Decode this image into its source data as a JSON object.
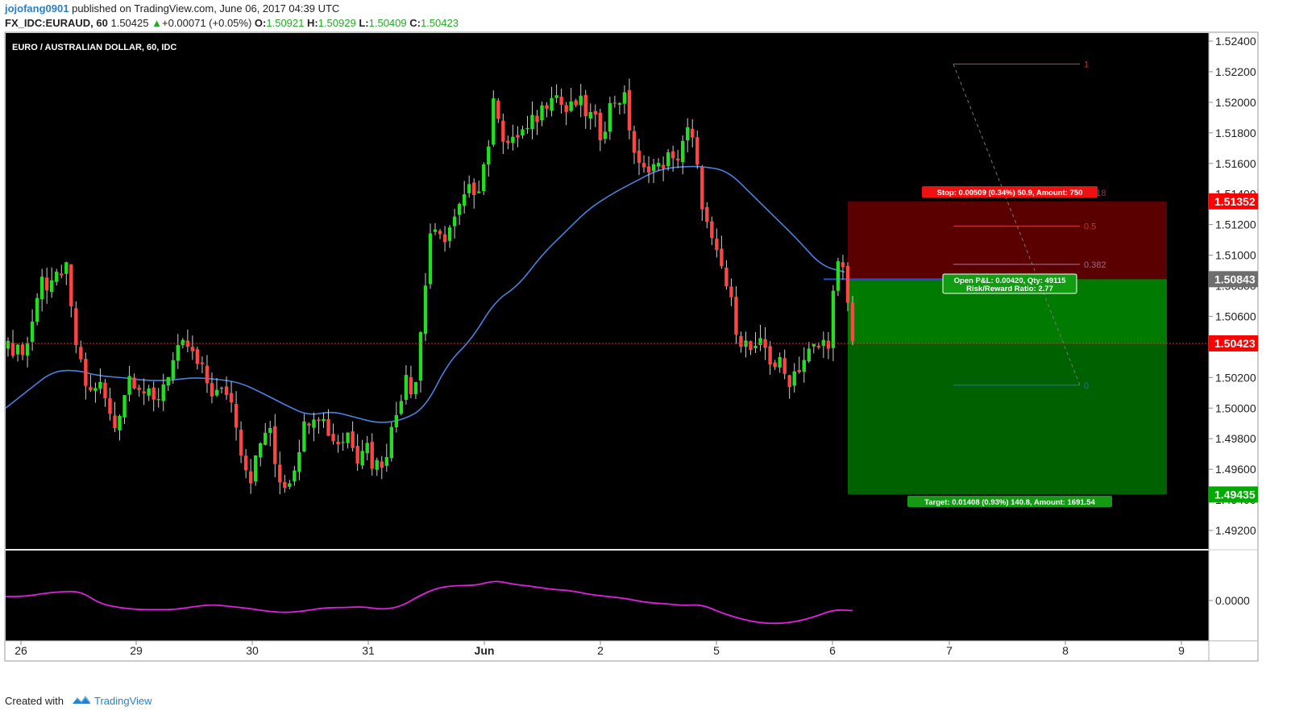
{
  "header": {
    "user": "jojofang0901",
    "published": "published on TradingView.com, June 06, 2017 04:39 UTC",
    "symbol": "FX_IDC:EURAUD, 60",
    "price": "1.50425",
    "change_arrow": "▲",
    "change": "+0.00071 (+0.05%)",
    "o_label": "O:",
    "o": "1.50921",
    "h_label": "H:",
    "h": "1.50929",
    "l_label": "L:",
    "l": "1.50409",
    "c_label": "C:",
    "c": "1.50423"
  },
  "footer": {
    "created": "Created with",
    "brand": "TradingView",
    "logo_icon": "tradingview-logo-icon"
  },
  "chart_data": {
    "type": "candlestick",
    "title": "EURO / AUSTRALIAN DOLLAR, 60, IDC",
    "x_ticks": [
      "26",
      "29",
      "30",
      "31",
      "Jun",
      "2",
      "5",
      "6",
      "7",
      "8",
      "9"
    ],
    "y_ticks": [
      "1.52400",
      "1.52200",
      "1.52000",
      "1.51800",
      "1.51600",
      "1.51400",
      "1.51200",
      "1.51000",
      "1.50800",
      "1.50600",
      "1.50400",
      "1.50200",
      "1.50000",
      "1.49800",
      "1.49600",
      "1.49400",
      "1.49200"
    ],
    "ylim": [
      1.4906,
      1.5252
    ],
    "price_labels": [
      {
        "value": 1.51352,
        "text": "1.51352",
        "color": "#ff0000"
      },
      {
        "value": 1.50843,
        "text": "1.50843",
        "color": "#6e6e6e"
      },
      {
        "value": 1.50423,
        "text": "1.50423",
        "color": "#ff0000"
      },
      {
        "value": 1.49435,
        "text": "1.49435",
        "color": "#00aa00"
      }
    ],
    "last_price": 1.50423,
    "candle_anchors": [
      1.5038,
      1.5042,
      1.5035,
      1.5055,
      1.5092,
      1.5072,
      1.5085,
      1.5096,
      1.5052,
      1.5025,
      1.5008,
      1.5018,
      1.5005,
      1.4985,
      1.5005,
      1.5022,
      1.5018,
      1.5008,
      1.5002,
      1.5015,
      1.5028,
      1.5035,
      1.5042,
      1.503,
      1.5022,
      1.5012,
      1.5008,
      1.5012,
      1.4995,
      1.4965,
      1.4955,
      1.4975,
      1.499,
      1.496,
      1.495,
      1.4958,
      1.498,
      1.4995,
      1.5,
      1.499,
      1.498,
      1.4978,
      1.4985,
      1.497,
      1.498,
      1.4962,
      1.4965,
      1.498,
      1.5,
      1.5025,
      1.5008,
      1.506,
      1.5115,
      1.5108,
      1.5115,
      1.5122,
      1.5135,
      1.5142,
      1.5148,
      1.5168,
      1.5205,
      1.5178,
      1.517,
      1.5182,
      1.518,
      1.519,
      1.5198,
      1.521,
      1.52,
      1.5192,
      1.52,
      1.5195,
      1.5188,
      1.518,
      1.5195,
      1.5205,
      1.52,
      1.517,
      1.515,
      1.5162,
      1.5155,
      1.5165,
      1.5158,
      1.5175,
      1.5182,
      1.515,
      1.512,
      1.51,
      1.509,
      1.5068,
      1.5048,
      1.504,
      1.5035,
      1.5042,
      1.503,
      1.5028,
      1.5018,
      1.5025,
      1.5032,
      1.5038,
      1.504,
      1.5045,
      1.5092,
      1.5087,
      1.5042
    ],
    "ma_anchors": [
      1.5,
      1.5012,
      1.5024,
      1.5025,
      1.5021,
      1.502,
      1.5018,
      1.5018,
      1.502,
      1.5019,
      1.5017,
      1.501,
      1.5002,
      1.4995,
      1.4998,
      1.4994,
      1.499,
      1.4992,
      1.5,
      1.503,
      1.5045,
      1.507,
      1.508,
      1.51,
      1.5115,
      1.513,
      1.514,
      1.5148,
      1.5156,
      1.5158,
      1.5158,
      1.5155,
      1.514,
      1.5125,
      1.511,
      1.5093,
      1.5089
    ],
    "ma_color": "#4a80e0",
    "oscillator": {
      "zero_label": "0.0000",
      "values": [
        0.4,
        0.4,
        0.7,
        0.9,
        0.9,
        -0.3,
        -0.7,
        -0.9,
        -0.9,
        -0.9,
        -0.6,
        -0.4,
        -0.6,
        -0.8,
        -1.1,
        -1.2,
        -1.0,
        -0.7,
        -0.7,
        -0.6,
        -0.9,
        -0.6,
        0.5,
        1.3,
        1.5,
        1.5,
        2.0,
        1.6,
        1.4,
        1.1,
        1.0,
        0.6,
        0.4,
        0.2,
        -0.2,
        -0.3,
        -0.5,
        -0.4,
        -1.2,
        -1.8,
        -2.2,
        -2.3,
        -2.1,
        -1.6,
        -0.9,
        -1.0
      ],
      "color": "#e020e0"
    },
    "position": {
      "stop_label": "Stop: 0.00509 (0.34%) 50.9, Amount: 750",
      "target_label": "Target: 0.01408 (0.93%) 140.8, Amount: 1691.54",
      "pnl_line1": "Open P&L: 0.00420, Qty: 49115",
      "pnl_line2": "Risk/Reward Ratio: 2.77",
      "entry": 1.50843,
      "stop": 1.51352,
      "target": 1.49435
    },
    "fib_levels": [
      {
        "label": "1",
        "value": 1.5225,
        "color": "#c0392b"
      },
      {
        "label": "0.618",
        "value": 1.5141,
        "color": "#8e3a3a"
      },
      {
        "label": "0.5",
        "value": 1.5119,
        "color": "#c0392b"
      },
      {
        "label": "0.382",
        "value": 1.5094,
        "color": "#9a6a9a"
      },
      {
        "label": "0",
        "value": 1.5015,
        "color": "#2a6ab0"
      }
    ]
  }
}
